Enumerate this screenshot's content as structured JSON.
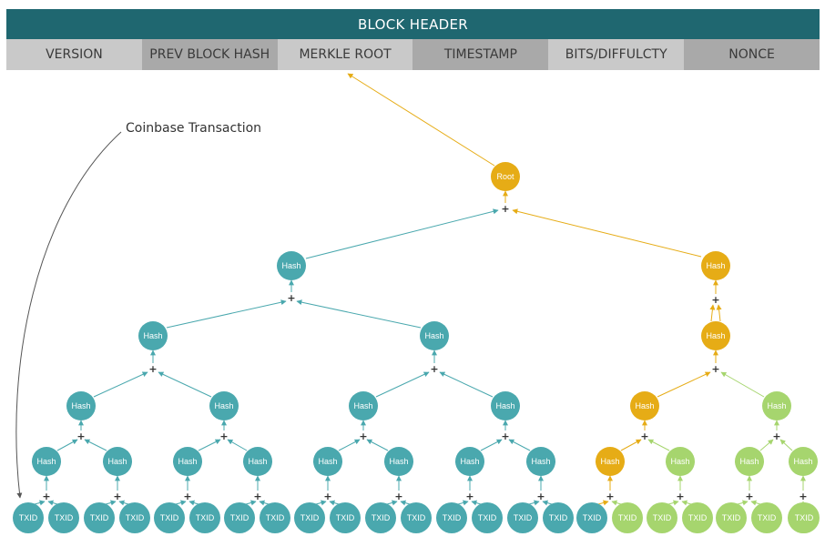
{
  "header": {
    "title": "BLOCK HEADER",
    "fields": [
      "VERSION",
      "PREV BLOCK HASH",
      "MERKLE ROOT",
      "TIMESTAMP",
      "BITS/DIFFULCTY",
      "NONCE"
    ]
  },
  "annotation": "Coinbase Transaction",
  "labels": {
    "root": "Root",
    "hash": "Hash",
    "txid": "TXID",
    "plus": "+"
  },
  "colors": {
    "teal": "#4aa8ae",
    "gold": "#e6ac16",
    "green": "#a6d56e",
    "header_bg": "#1f6770"
  }
}
